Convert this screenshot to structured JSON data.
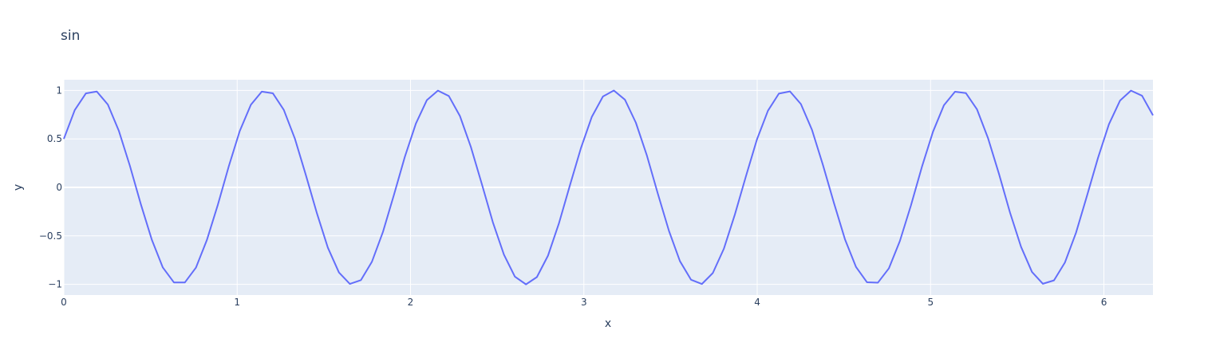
{
  "chart_data": {
    "type": "line",
    "title": "sin",
    "x_label": "x",
    "y_label": "y",
    "x": [
      0,
      0.063,
      0.127,
      0.19,
      0.254,
      0.317,
      0.381,
      0.444,
      0.508,
      0.571,
      0.635,
      0.698,
      0.762,
      0.825,
      0.889,
      0.952,
      1.015,
      1.079,
      1.142,
      1.206,
      1.269,
      1.333,
      1.396,
      1.46,
      1.523,
      1.587,
      1.65,
      1.714,
      1.777,
      1.841,
      1.904,
      1.967,
      2.031,
      2.094,
      2.158,
      2.221,
      2.285,
      2.348,
      2.412,
      2.475,
      2.539,
      2.602,
      2.666,
      2.729,
      2.793,
      2.856,
      2.919,
      2.983,
      3.046,
      3.11,
      3.173,
      3.237,
      3.3,
      3.364,
      3.427,
      3.491,
      3.554,
      3.618,
      3.681,
      3.744,
      3.808,
      3.871,
      3.935,
      3.998,
      4.062,
      4.125,
      4.189,
      4.252,
      4.316,
      4.379,
      4.443,
      4.506,
      4.57,
      4.633,
      4.696,
      4.76,
      4.823,
      4.887,
      4.95,
      5.014,
      5.077,
      5.141,
      5.204,
      5.268,
      5.331,
      5.395,
      5.458,
      5.522,
      5.585,
      5.648,
      5.712,
      5.775,
      5.839,
      5.902,
      5.966,
      6.029,
      6.093,
      6.156,
      6.22,
      6.283
    ],
    "series": [
      {
        "color": "#636efa",
        "values": [
          0.5,
          0.797,
          0.969,
          0.989,
          0.854,
          0.585,
          0.223,
          -0.172,
          -0.542,
          -0.826,
          -0.98,
          -0.981,
          -0.828,
          -0.544,
          -0.176,
          0.22,
          0.582,
          0.852,
          0.988,
          0.97,
          0.799,
          0.502,
          0.128,
          -0.267,
          -0.621,
          -0.877,
          -0.995,
          -0.956,
          -0.768,
          -0.459,
          -0.079,
          0.314,
          0.658,
          0.899,
          0.998,
          0.942,
          0.736,
          0.418,
          0.031,
          -0.36,
          -0.694,
          -0.92,
          -1.0,
          -0.925,
          -0.704,
          -0.372,
          0.018,
          0.405,
          0.728,
          0.937,
          0.999,
          0.904,
          0.667,
          0.326,
          -0.067,
          -0.449,
          -0.76,
          -0.952,
          -0.996,
          -0.883,
          -0.631,
          -0.28,
          0.115,
          0.492,
          0.791,
          0.967,
          0.99,
          0.859,
          0.593,
          0.232,
          -0.163,
          -0.534,
          -0.821,
          -0.978,
          -0.983,
          -0.834,
          -0.553,
          -0.185,
          0.211,
          0.574,
          0.847,
          0.987,
          0.972,
          0.804,
          0.51,
          0.137,
          -0.258,
          -0.613,
          -0.872,
          -0.994,
          -0.959,
          -0.775,
          -0.468,
          -0.089,
          0.305,
          0.651,
          0.895,
          0.998,
          0.945,
          0.743
        ]
      }
    ],
    "xlim": [
      0,
      6.283
    ],
    "xticks": [
      0,
      1,
      2,
      3,
      4,
      5,
      6
    ],
    "ylim": [
      -1.11,
      1.11
    ],
    "yticks": [
      {
        "value": -1,
        "label": "−1"
      },
      {
        "value": -0.5,
        "label": "−0.5"
      },
      0,
      0.5,
      1
    ],
    "grid": true,
    "plot_bg": "#e5ecf6"
  }
}
